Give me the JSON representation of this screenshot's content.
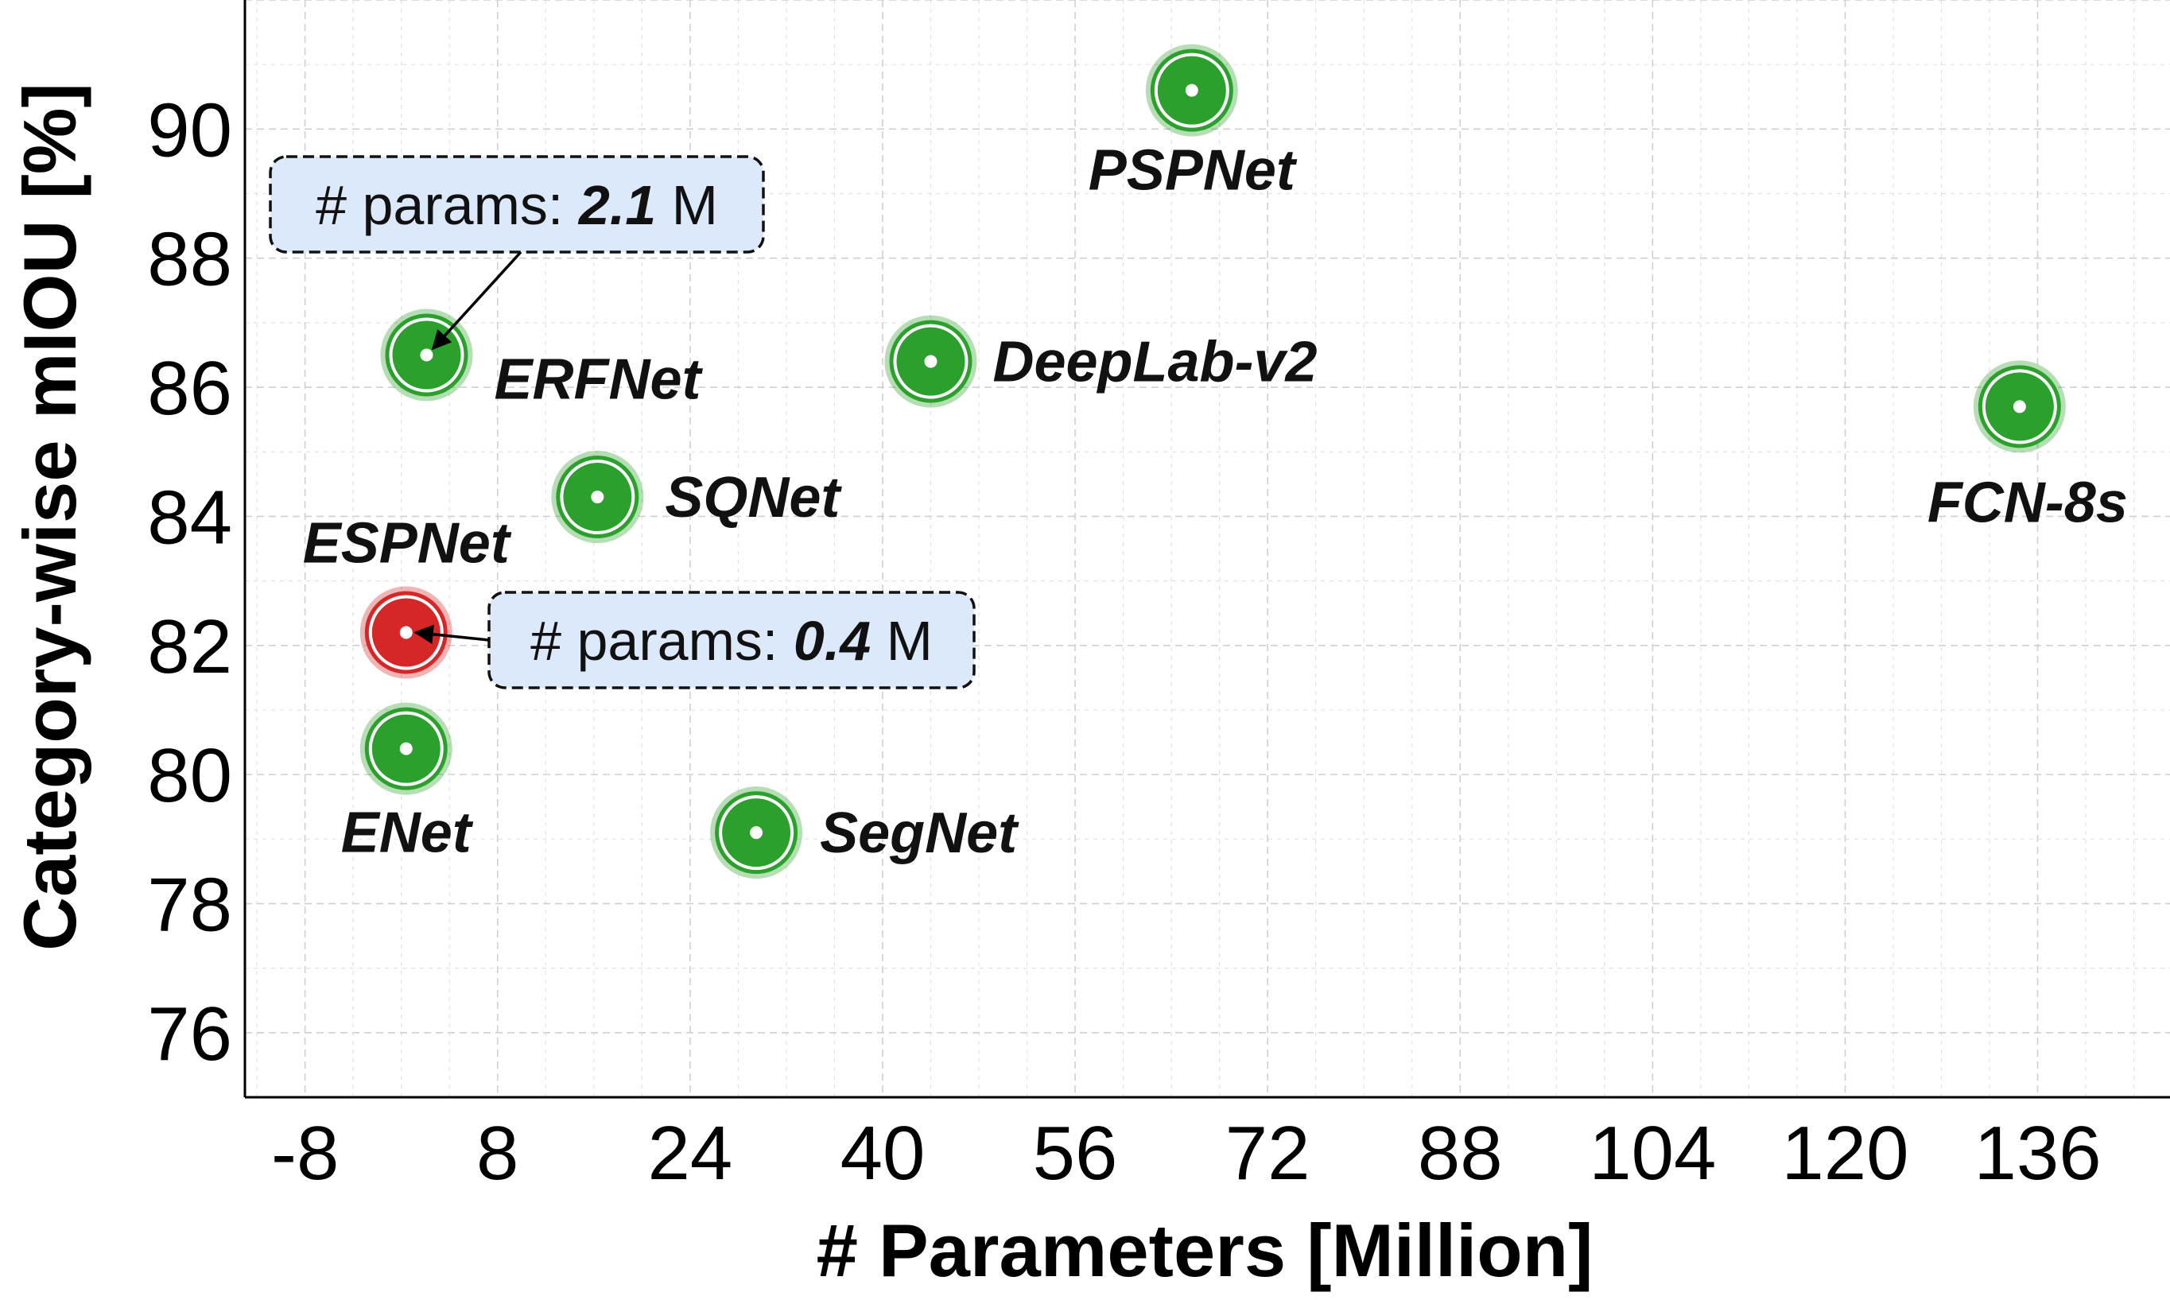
{
  "chart_data": {
    "type": "scatter",
    "title": "",
    "xlabel": "# Parameters [Million]",
    "ylabel": "Category-wise mIOU [%]",
    "xlim": [
      -13,
      147
    ],
    "ylim": [
      75,
      92
    ],
    "xticks": [
      -8,
      8,
      24,
      40,
      56,
      72,
      88,
      104,
      120,
      136
    ],
    "yticks": [
      76,
      78,
      80,
      82,
      84,
      86,
      88,
      90
    ],
    "grid": true,
    "points": [
      {
        "name": "PSPNet",
        "x": 65.7,
        "y": 90.6,
        "color": "#2ca02c"
      },
      {
        "name": "ERFNet",
        "x": 2.1,
        "y": 86.5,
        "color": "#2ca02c"
      },
      {
        "name": "DeepLab-v2",
        "x": 44.0,
        "y": 86.4,
        "color": "#2ca02c"
      },
      {
        "name": "FCN-8s",
        "x": 134.5,
        "y": 85.7,
        "color": "#2ca02c"
      },
      {
        "name": "SQNet",
        "x": 16.3,
        "y": 84.3,
        "color": "#2ca02c"
      },
      {
        "name": "ESPNet",
        "x": 0.4,
        "y": 82.2,
        "color": "#d62728"
      },
      {
        "name": "ENet",
        "x": 0.4,
        "y": 80.4,
        "color": "#2ca02c"
      },
      {
        "name": "SegNet",
        "x": 29.5,
        "y": 79.1,
        "color": "#2ca02c"
      }
    ],
    "annotations": [
      {
        "target": "ERFNet",
        "prefix": "# params: ",
        "value": "2.1",
        "unit": " M"
      },
      {
        "target": "ESPNet",
        "prefix": "# params: ",
        "value": "0.4",
        "unit": " M"
      }
    ],
    "colors": {
      "box_fill": "#dbe9fb"
    }
  }
}
